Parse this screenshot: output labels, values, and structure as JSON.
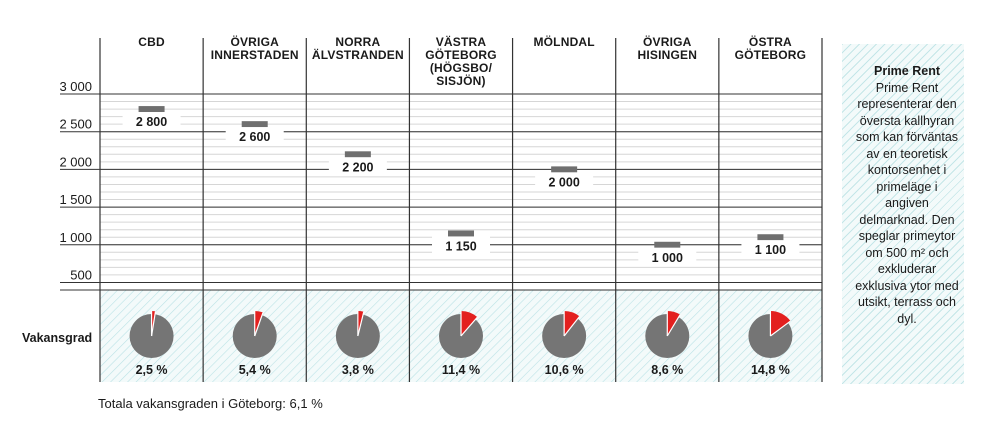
{
  "chart_data": {
    "type": "bar",
    "categories": [
      [
        "CBD"
      ],
      [
        "ÖVRIGA",
        "INNERSTADEN"
      ],
      [
        "NORRA",
        "ÄLVSTRANDEN"
      ],
      [
        "VÄSTRA",
        "GÖTEBORG",
        "(HÖGSBO/",
        "SISJÖN)"
      ],
      [
        "MÖLNDAL"
      ],
      [
        "ÖVRIGA",
        "HISINGEN"
      ],
      [
        "ÖSTRA",
        "GÖTEBORG"
      ]
    ],
    "values": [
      2800,
      2600,
      2200,
      1150,
      2000,
      1000,
      1100
    ],
    "value_labels": [
      "2 800",
      "2 600",
      "2 200",
      "1 150",
      "2 000",
      "1 000",
      "1 100"
    ],
    "yticks": [
      500,
      1000,
      1500,
      2000,
      2500,
      3000
    ],
    "ytick_labels": [
      "500",
      "1 000",
      "1 500",
      "2 000",
      "2 500",
      "3 000"
    ],
    "ylim": [
      400,
      3000
    ],
    "grid": true,
    "vacancy": {
      "label": "Vakansgrad",
      "values": [
        2.5,
        5.4,
        3.8,
        11.4,
        10.6,
        8.6,
        14.8
      ],
      "labels": [
        "2,5 %",
        "5,4 %",
        "3,8 %",
        "11,4 %",
        "10,6 %",
        "8,6 %",
        "14,8 %"
      ]
    },
    "colors": {
      "marker": "#6f6f6f",
      "pie_base": "#757575",
      "pie_slice": "#e3201f",
      "grid": "#d6d6d6",
      "axis": "#333333"
    }
  },
  "info_box": {
    "title": "Prime Rent",
    "body": "Prime Rent representerar den översta kallhyran som kan förväntas av en teoretisk kontorsenhet i primeläge i angiven delmarknad. Den speglar primeytor om 500 m² och exkluderar exklusiva ytor med utsikt, terrass och dyl."
  },
  "footnote": "Totala vakansgraden i Göteborg: 6,1 %"
}
